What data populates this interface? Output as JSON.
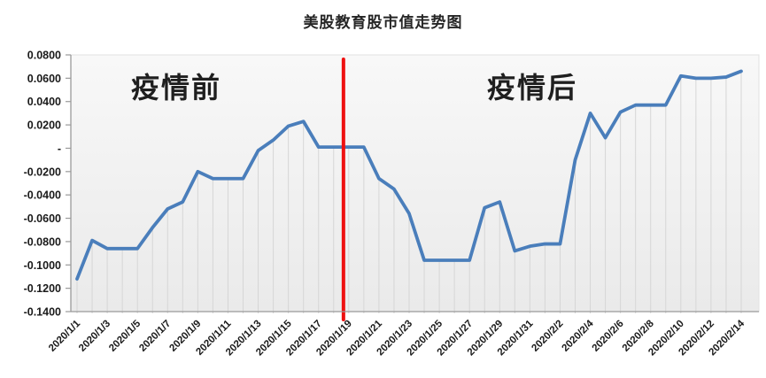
{
  "annotations": {
    "pre": "疫情前",
    "post": "疫情后"
  },
  "chart_data": {
    "type": "line",
    "title": "美股教育股市值走势图",
    "x": [
      "2020/1/1",
      "2020/1/2",
      "2020/1/3",
      "2020/1/4",
      "2020/1/5",
      "2020/1/6",
      "2020/1/7",
      "2020/1/8",
      "2020/1/9",
      "2020/1/10",
      "2020/1/11",
      "2020/1/12",
      "2020/1/13",
      "2020/1/14",
      "2020/1/15",
      "2020/1/16",
      "2020/1/17",
      "2020/1/18",
      "2020/1/19",
      "2020/1/20",
      "2020/1/21",
      "2020/1/22",
      "2020/1/23",
      "2020/1/24",
      "2020/1/25",
      "2020/1/26",
      "2020/1/27",
      "2020/1/28",
      "2020/1/29",
      "2020/1/30",
      "2020/1/31",
      "2020/2/1",
      "2020/2/2",
      "2020/2/3",
      "2020/2/4",
      "2020/2/5",
      "2020/2/6",
      "2020/2/7",
      "2020/2/8",
      "2020/2/9",
      "2020/2/10",
      "2020/2/11",
      "2020/2/12",
      "2020/2/13",
      "2020/2/14"
    ],
    "values": [
      -0.112,
      -0.079,
      -0.086,
      -0.086,
      -0.086,
      -0.068,
      -0.052,
      -0.046,
      -0.02,
      -0.026,
      -0.026,
      -0.026,
      -0.002,
      0.007,
      0.019,
      0.023,
      0.001,
      0.001,
      0.001,
      0.001,
      -0.026,
      -0.035,
      -0.056,
      -0.096,
      -0.096,
      -0.096,
      -0.096,
      -0.051,
      -0.046,
      -0.088,
      -0.084,
      -0.082,
      -0.082,
      -0.01,
      0.03,
      0.009,
      0.031,
      0.037,
      0.037,
      0.037,
      0.062,
      0.06,
      0.06,
      0.061,
      0.066
    ],
    "x_tick_labels": [
      "2020/1/1",
      "2020/1/3",
      "2020/1/5",
      "2020/1/7",
      "2020/1/9",
      "2020/1/11",
      "2020/1/13",
      "2020/1/15",
      "2020/1/17",
      "2020/1/19",
      "2020/1/21",
      "2020/1/23",
      "2020/1/25",
      "2020/1/27",
      "2020/1/29",
      "2020/1/31",
      "2020/2/2",
      "2020/2/4",
      "2020/2/6",
      "2020/2/8",
      "2020/2/10",
      "2020/2/12",
      "2020/2/14"
    ],
    "x_tick_every": 2,
    "y_ticks": [
      0.08,
      0.06,
      0.04,
      0.02,
      0,
      -0.02,
      -0.04,
      -0.06,
      -0.08,
      -0.1,
      -0.12,
      -0.14
    ],
    "y_tick_labels": [
      "0.0800",
      "0.0600",
      "0.0400",
      "0.0200",
      "-",
      "-0.0200",
      "-0.0400",
      "-0.0600",
      "-0.0800",
      "-0.1000",
      "-0.1200",
      "-0.1400"
    ],
    "ylim": [
      -0.14,
      0.08
    ],
    "grid": "vertical-drop-lines",
    "legend": "none",
    "divider": {
      "between_dates": [
        "2020/1/18",
        "2020/1/19"
      ],
      "position_index": 17.65,
      "color": "#ee1111"
    },
    "colors": {
      "line": "#4a7ebb",
      "drop_line": "#d6d6d6",
      "axis": "#9a9a9a",
      "tick_text": "#1a1a1a",
      "plot_bg_top": "#f8f8f8",
      "plot_bg_bottom": "#eaeaea"
    }
  }
}
